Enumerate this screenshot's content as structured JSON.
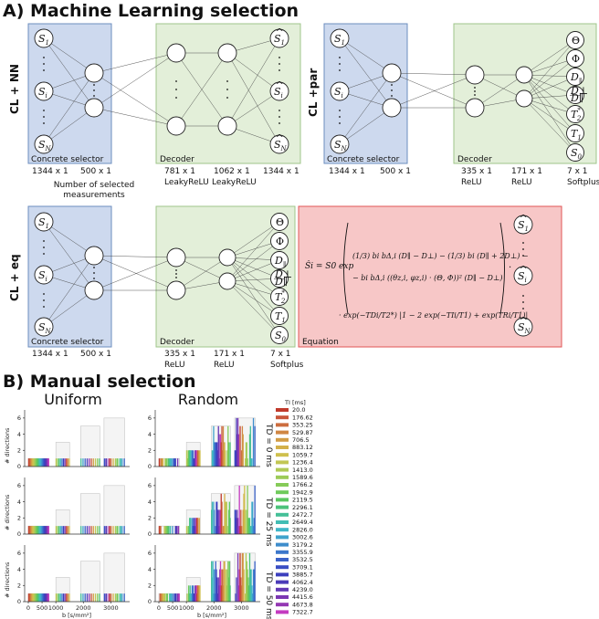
{
  "section_a_title": "A) Machine Learning selection",
  "section_b_title": "B) Manual selection",
  "networks": {
    "cl_nn": {
      "row_label": "CL + NN",
      "selector_label": "Concrete selector",
      "decoder_label": "Decoder",
      "sizes": [
        "1344 x 1",
        "500 x 1",
        "781 x 1",
        "1062 x 1",
        "1344 x 1"
      ],
      "activations": [
        "LeakyReLU",
        "LeakyReLU"
      ],
      "note_lines": [
        "Number of selected",
        "measurements"
      ]
    },
    "cl_par": {
      "row_label": "CL +par",
      "selector_label": "Concrete selector",
      "decoder_label": "Decoder",
      "sizes": [
        "1344 x 1",
        "500 x 1",
        "335 x 1",
        "171 x 1",
        "7 x 1"
      ],
      "activations": [
        "ReLU",
        "ReLU",
        "Softplus"
      ]
    },
    "cl_eq": {
      "row_label": "CL + eq",
      "selector_label": "Concrete selector",
      "decoder_label": "Decoder",
      "equation_label": "Equation",
      "sizes": [
        "1344 x 1",
        "500 x 1",
        "335 x 1",
        "171 x 1",
        "7 x 1"
      ],
      "activations": [
        "ReLU",
        "ReLU",
        "Softplus"
      ]
    }
  },
  "input_nodes": [
    "S1",
    "Si",
    "SN"
  ],
  "output_param_nodes": [
    "Θ",
    "Φ",
    "D∥",
    "D⊥/D∥",
    "T2*",
    "T1",
    "S0"
  ],
  "equation": {
    "lhs": "Ŝi = S0 exp",
    "line1": "(1/3) bi bΔ,i (D∥ − D⊥) − (1/3) bi (D∥ + 2D⊥) −",
    "line2": "− bi bΔ,i ((θz,i, φz,i) · (Θ, Φ))² (D∥ − D⊥)",
    "line3": "· exp(−TDi/T2*) |1 − 2 exp(−TIi/T1) + exp(TRi/T1)|"
  },
  "manual": {
    "columns": [
      "Uniform",
      "Random"
    ],
    "td_labels": [
      "TD = 0 ms",
      "TD = 25 ms",
      "TD = 50 ms"
    ],
    "ylabel": "# directions",
    "xlabel": "b [s/mm²]",
    "x_ticks": [
      0,
      500,
      1000,
      2000,
      3000
    ],
    "y_ticks": [
      0,
      2,
      4,
      6
    ],
    "legend_title": "TI [ms]",
    "ti_values": [
      "20.0",
      "176.62",
      "353.25",
      "529.87",
      "706.5",
      "883.12",
      "1059.7",
      "1236.4",
      "1413.0",
      "1589.6",
      "1766.2",
      "1942.9",
      "2119.5",
      "2296.1",
      "2472.7",
      "2649.4",
      "2826.0",
      "3002.6",
      "3179.2",
      "3355.9",
      "3532.5",
      "3709.1",
      "3885.7",
      "4062.4",
      "4239.0",
      "4415.6",
      "4673.8",
      "7322.7"
    ],
    "ti_colors": [
      "#c0392b",
      "#c8553a",
      "#cc6d3f",
      "#d08643",
      "#d29c45",
      "#d3b04a",
      "#cfc04e",
      "#c2c653",
      "#b0c956",
      "#9ccb58",
      "#86cb59",
      "#6fca5b",
      "#5ac65f",
      "#4cc27a",
      "#45c098",
      "#42bdb4",
      "#40b6c8",
      "#3fa3cc",
      "#3e8dcc",
      "#3c77cb",
      "#3b62c8",
      "#3a4ec4",
      "#3c3fbe",
      "#4b3bb8",
      "#6238b4",
      "#7b37b3",
      "#9438b3",
      "#c43bc0"
    ],
    "group_outline_color": "#bbbbbb"
  }
}
